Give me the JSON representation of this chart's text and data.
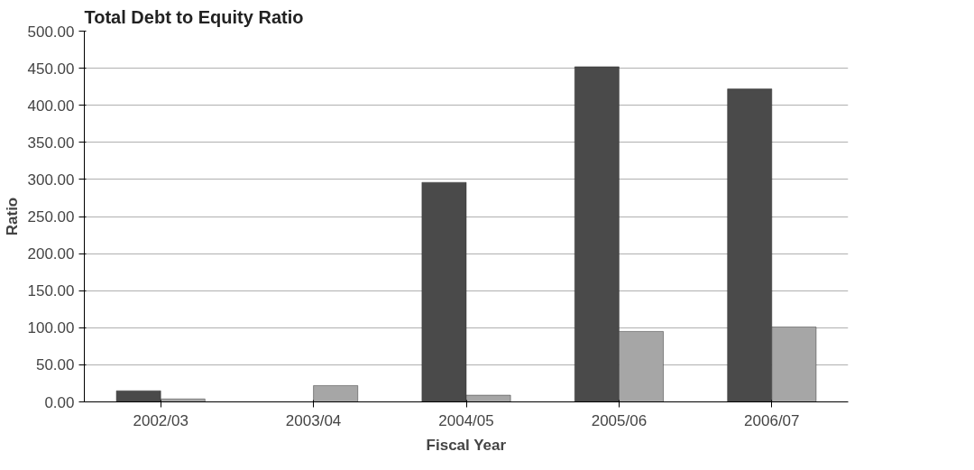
{
  "chart_data": {
    "type": "bar",
    "title": "Total Debt to Equity Ratio",
    "xlabel": "Fiscal Year",
    "ylabel": "Ratio",
    "categories": [
      "2002/03",
      "2003/04",
      "2004/05",
      "2005/06",
      "2006/07"
    ],
    "series": [
      {
        "color": "#4a4a4a",
        "values": [
          15,
          null,
          296,
          452,
          422
        ]
      },
      {
        "color": "#a6a6a6",
        "values": [
          4,
          22,
          9,
          95,
          101
        ]
      }
    ],
    "ylim": [
      0,
      500
    ],
    "yticks": [
      {
        "value": 0,
        "label": "0.00"
      },
      {
        "value": 50,
        "label": "50.00"
      },
      {
        "value": 100,
        "label": "100.00"
      },
      {
        "value": 150,
        "label": "150.00"
      },
      {
        "value": 200,
        "label": "200.00"
      },
      {
        "value": 250,
        "label": "250.00"
      },
      {
        "value": 300,
        "label": "300.00"
      },
      {
        "value": 350,
        "label": "350.00"
      },
      {
        "value": 400,
        "label": "400.00"
      },
      {
        "value": 450,
        "label": "450.00"
      },
      {
        "value": 500,
        "label": "500.00"
      }
    ],
    "grid": "y"
  }
}
